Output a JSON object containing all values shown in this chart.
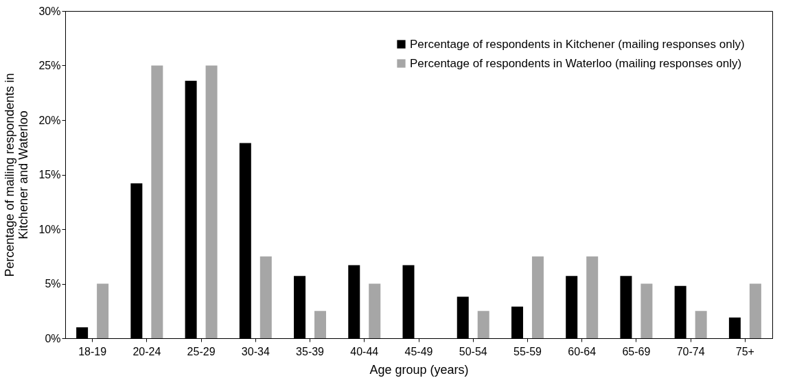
{
  "chart_data": {
    "type": "bar",
    "xlabel": "Age group (years)",
    "ylabel": "Percentage of  mailing respondents in\nKitchener and Waterloo",
    "categories": [
      "18-19",
      "20-24",
      "25-29",
      "30-34",
      "35-39",
      "40-44",
      "45-49",
      "50-54",
      "55-59",
      "60-64",
      "65-69",
      "70-74",
      "75+"
    ],
    "series": [
      {
        "name": "Percentage of respondents in Kitchener (mailing responses only)",
        "color": "#000000",
        "values": [
          1.0,
          14.2,
          23.6,
          17.9,
          5.7,
          6.7,
          6.7,
          3.8,
          2.9,
          5.7,
          5.7,
          4.8,
          1.9
        ]
      },
      {
        "name": "Percentage of respondents in Waterloo (mailing responses only)",
        "color": "#a6a6a6",
        "values": [
          5,
          25,
          25,
          7.5,
          2.5,
          5,
          0,
          2.5,
          7.5,
          7.5,
          5,
          2.5,
          5
        ]
      }
    ],
    "ylim": [
      0,
      30
    ],
    "yticks": [
      {
        "value": 0,
        "label": "0%"
      },
      {
        "value": 5,
        "label": "5%"
      },
      {
        "value": 10,
        "label": "10%"
      },
      {
        "value": 15,
        "label": "15%"
      },
      {
        "value": 20,
        "label": "20%"
      },
      {
        "value": 25,
        "label": "25%"
      },
      {
        "value": 30,
        "label": "30%"
      }
    ],
    "grid": false,
    "legend": "top right"
  }
}
